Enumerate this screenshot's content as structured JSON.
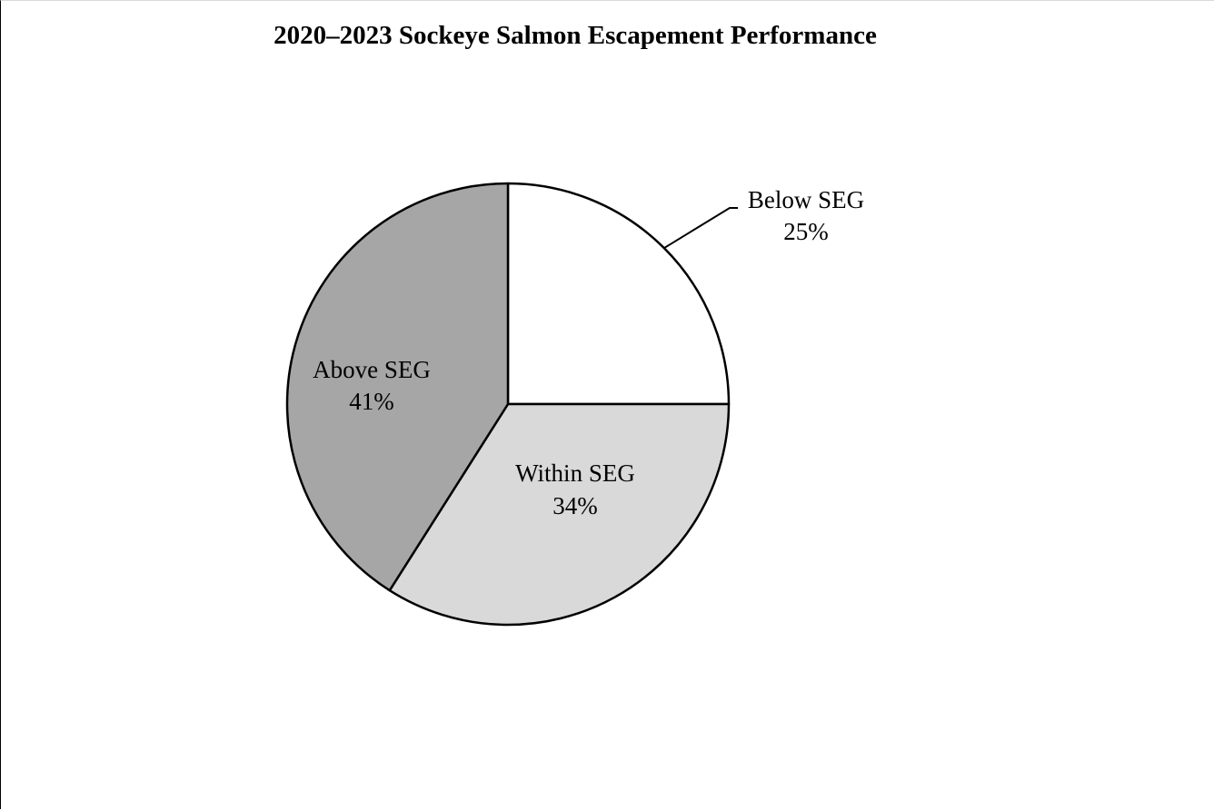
{
  "chart_data": {
    "type": "pie",
    "title": "2020–2023 Sockeye Salmon Escapement Performance",
    "slices": [
      {
        "label": "Below SEG",
        "value": 25,
        "value_label": "25%",
        "color": "#ffffff"
      },
      {
        "label": "Within SEG",
        "value": 34,
        "value_label": "34%",
        "color": "#d9d9d9"
      },
      {
        "label": "Above SEG",
        "value": 41,
        "value_label": "41%",
        "color": "#a6a6a6"
      }
    ],
    "start_angle": "12 o'clock",
    "direction": "clockwise",
    "legend": "none",
    "label_placement": "on slices; Below SEG outside with leader line"
  }
}
